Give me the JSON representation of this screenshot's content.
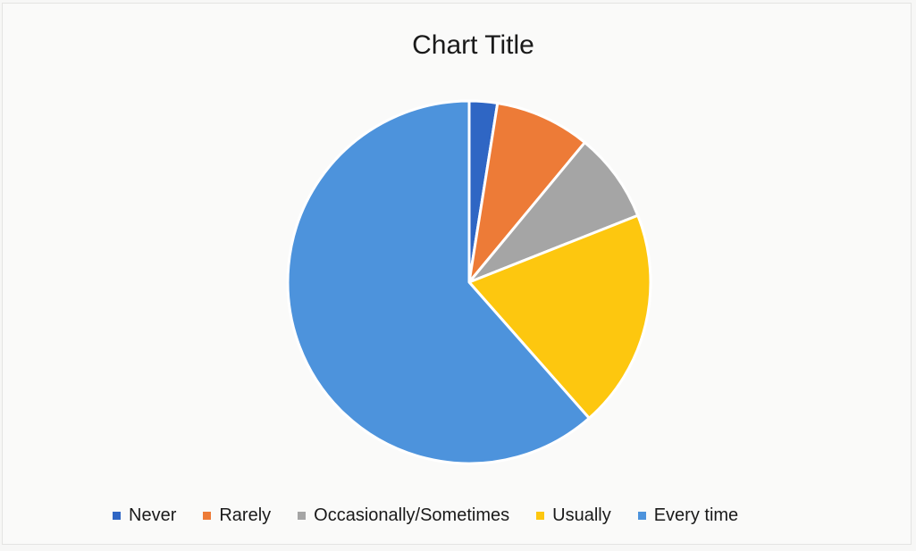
{
  "chart_data": {
    "type": "pie",
    "title": "Chart Title",
    "categories": [
      "Never",
      "Rarely",
      "Occasionally/Sometimes",
      "Usually",
      "Every time"
    ],
    "values": [
      2.5,
      8.5,
      8,
      19.5,
      61.5
    ],
    "colors": [
      "#2f66c4",
      "#ed7b37",
      "#a5a5a5",
      "#fdc70f",
      "#4d93dc"
    ],
    "start_angle_deg": 0,
    "legend_position": "bottom"
  }
}
